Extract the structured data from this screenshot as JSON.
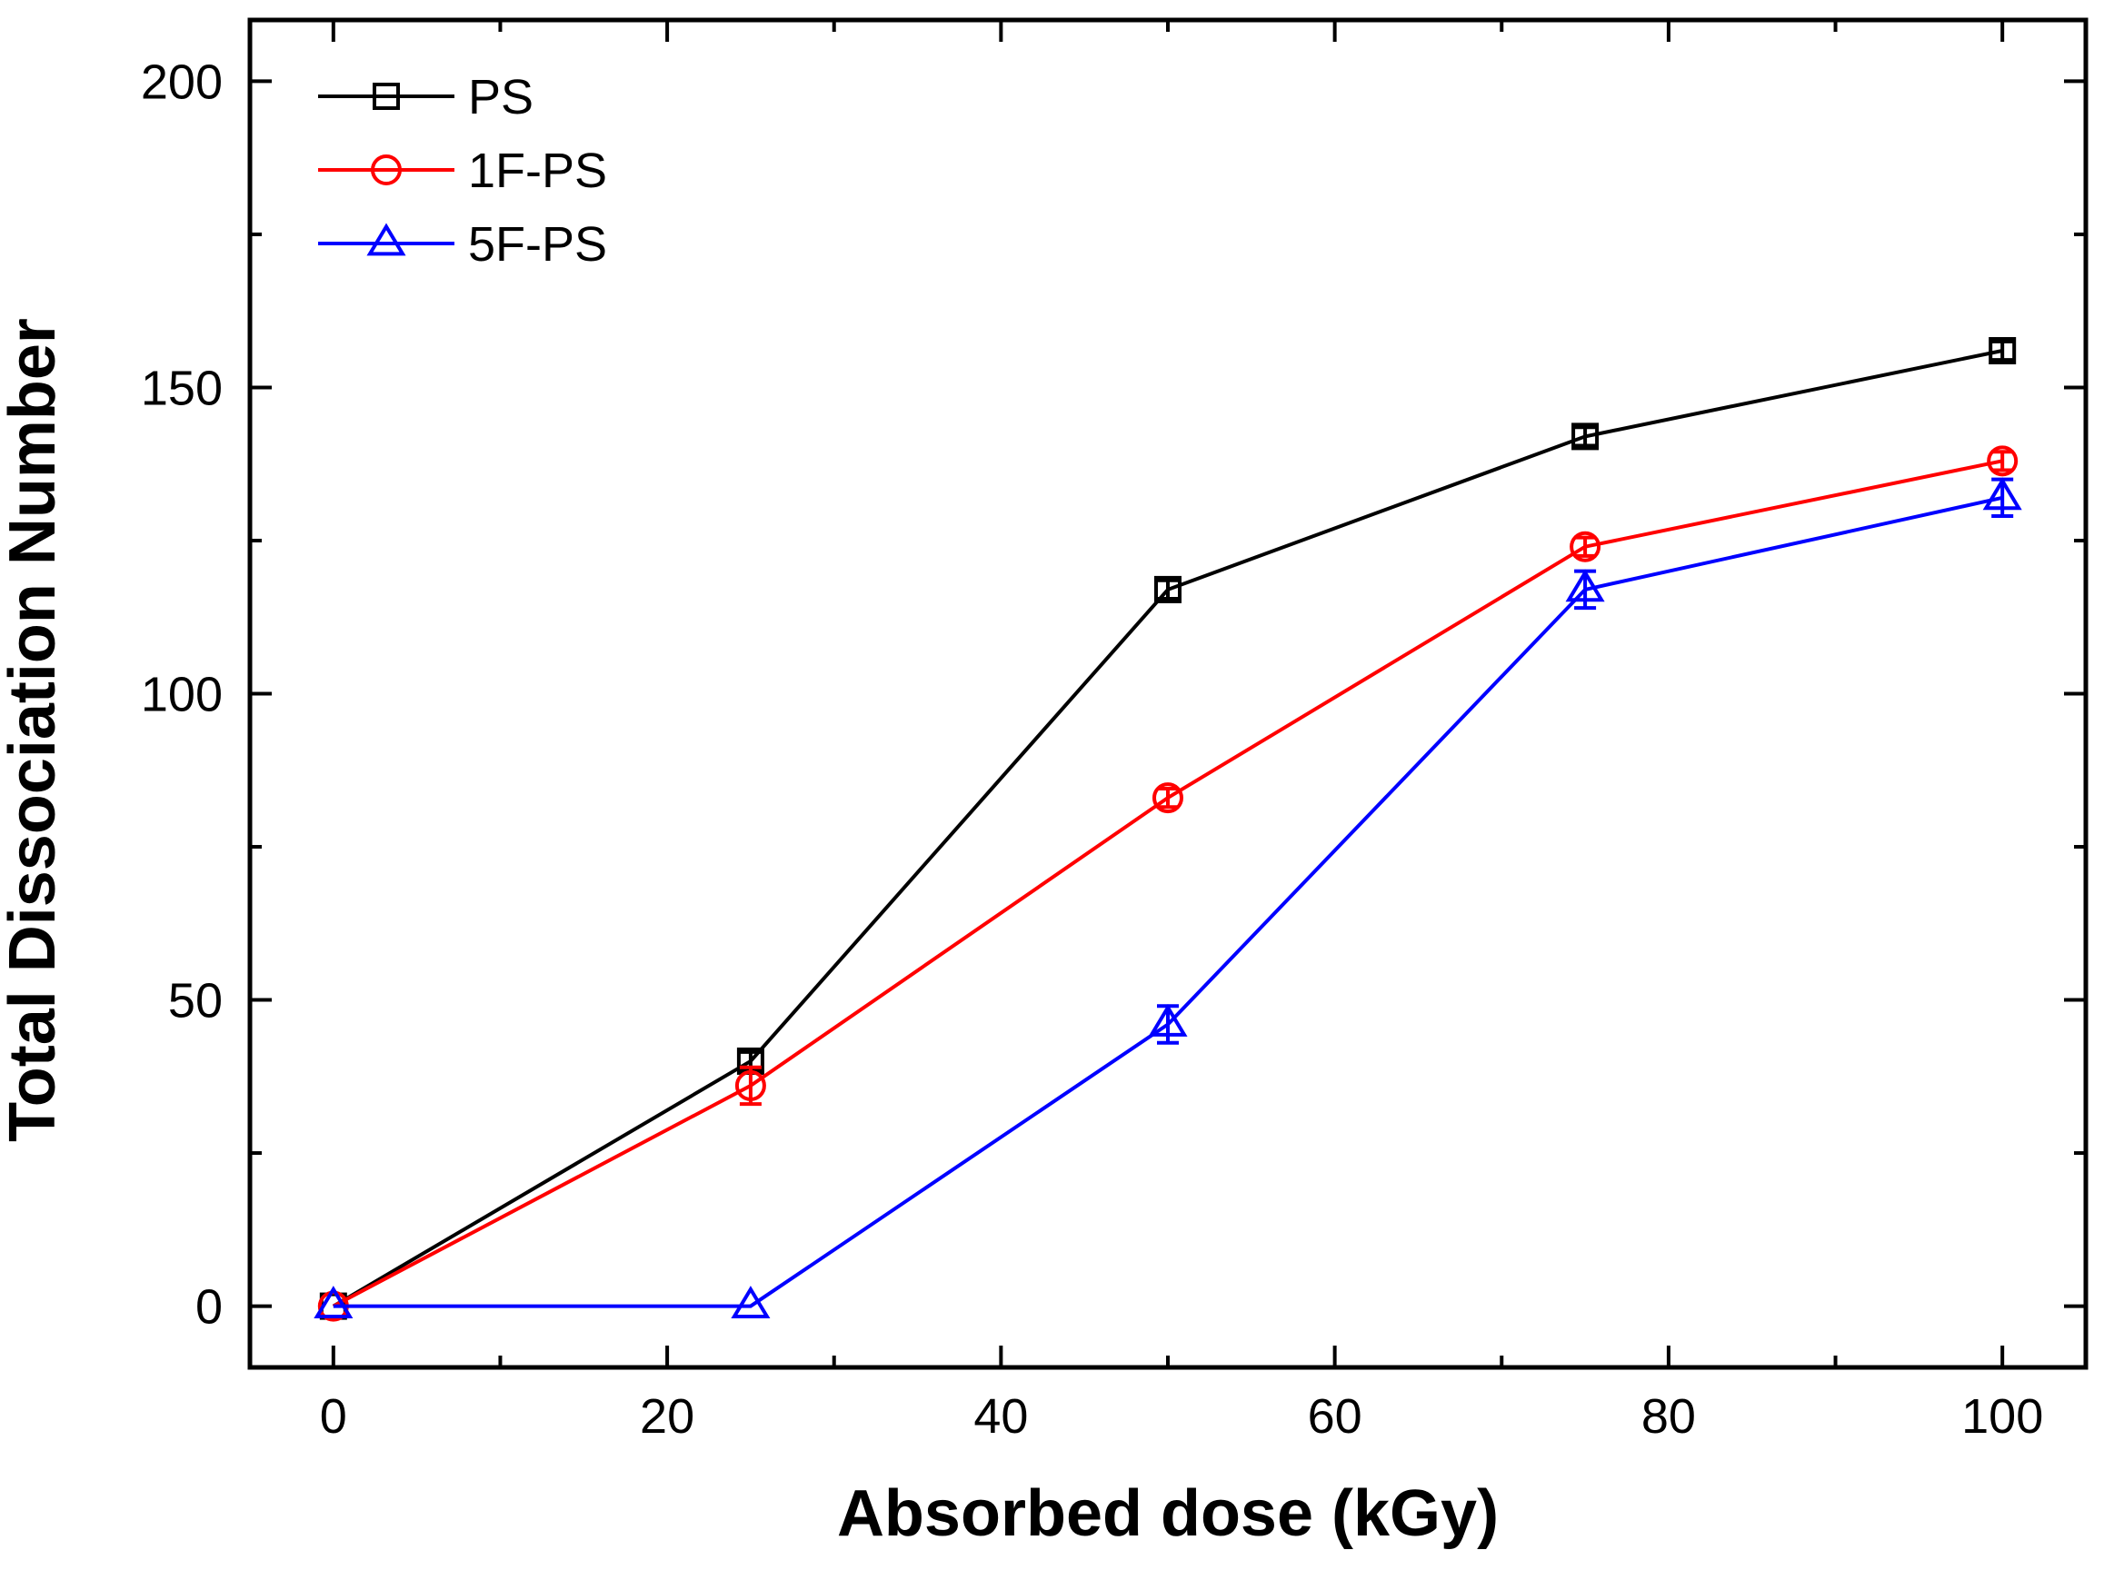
{
  "chart_data": {
    "type": "line",
    "xlabel": "Absorbed dose (kGy)",
    "ylabel": "Total Dissociation Number",
    "xlim": [
      -5,
      105
    ],
    "ylim": [
      -10,
      210
    ],
    "x_major_ticks": [
      0,
      20,
      40,
      60,
      80,
      100
    ],
    "x_minor_ticks": [
      10,
      30,
      50,
      70,
      90
    ],
    "y_major_ticks": [
      0,
      50,
      100,
      150,
      200
    ],
    "y_minor_ticks": [
      25,
      75,
      125,
      175
    ],
    "x_tick_labels": [
      "0",
      "20",
      "40",
      "60",
      "80",
      "100"
    ],
    "y_tick_labels": [
      "0",
      "50",
      "100",
      "150",
      "200"
    ],
    "grid": false,
    "legend_position": "top-left",
    "x": [
      0,
      25,
      50,
      75,
      100
    ],
    "series": [
      {
        "name": "PS",
        "color": "#000000",
        "marker": "square",
        "values": [
          0,
          40,
          117,
          142,
          156
        ],
        "errors": [
          0.5,
          1.5,
          1.5,
          1.5,
          1.5
        ]
      },
      {
        "name": "1F-PS",
        "color": "#ff0000",
        "marker": "circle",
        "values": [
          0,
          36,
          83,
          124,
          138
        ],
        "errors": [
          0.5,
          3,
          1.5,
          1.5,
          1.5
        ]
      },
      {
        "name": "5F-PS",
        "color": "#0000ff",
        "marker": "triangle",
        "values": [
          0,
          0,
          46,
          117,
          132
        ],
        "errors": [
          0.5,
          0.5,
          3,
          3,
          3
        ]
      }
    ]
  }
}
